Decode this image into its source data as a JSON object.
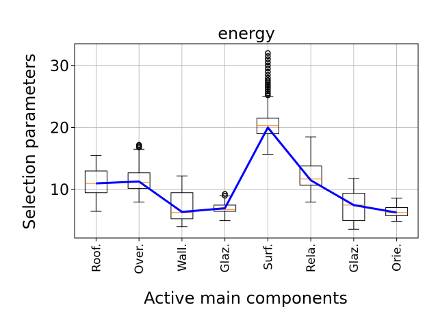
{
  "chart_data": {
    "type": "box",
    "title": "energy",
    "xlabel": "Active main components",
    "ylabel": "Selection parameters",
    "ylim": [
      2.2,
      33.5
    ],
    "yticks": [
      10,
      20,
      30
    ],
    "grid": true,
    "categories": [
      "Roof.",
      "Over.",
      "Wall.",
      "Glaz.",
      "Surf.",
      "Rela.",
      "Glaz.",
      "Orie."
    ],
    "boxes": [
      {
        "whislo": 6.5,
        "q1": 9.5,
        "med": 11.0,
        "q3": 13.0,
        "whishi": 15.5,
        "fliers": []
      },
      {
        "whislo": 8.0,
        "q1": 10.2,
        "med": 11.2,
        "q3": 12.7,
        "whishi": 16.5,
        "fliers": [
          16.8,
          17.0,
          17.2
        ]
      },
      {
        "whislo": 4.0,
        "q1": 5.3,
        "med": 6.3,
        "q3": 9.5,
        "whishi": 12.2,
        "fliers": []
      },
      {
        "whislo": 5.0,
        "q1": 6.5,
        "med": 6.8,
        "q3": 7.5,
        "whishi": 9.0,
        "fliers": [
          9.0,
          9.3
        ]
      },
      {
        "whislo": 15.7,
        "q1": 19.0,
        "med": 20.3,
        "q3": 21.5,
        "whishi": 25.0,
        "fliers": [
          25.2,
          25.5,
          25.8,
          26.1,
          26.4,
          26.7,
          27.0,
          27.3,
          27.6,
          28.0,
          28.5,
          29.0,
          29.5,
          30.0,
          30.5,
          31.0,
          31.5,
          32.0
        ]
      },
      {
        "whislo": 8.0,
        "q1": 10.7,
        "med": 11.7,
        "q3": 13.8,
        "whishi": 18.5,
        "fliers": []
      },
      {
        "whislo": 3.6,
        "q1": 5.0,
        "med": 7.5,
        "q3": 9.4,
        "whishi": 11.8,
        "fliers": []
      },
      {
        "whislo": 4.9,
        "q1": 5.8,
        "med": 6.3,
        "q3": 7.1,
        "whishi": 8.6,
        "fliers": []
      }
    ],
    "line": {
      "values": [
        11.0,
        11.3,
        6.4,
        7.0,
        20.0,
        11.5,
        7.5,
        6.3
      ],
      "color": "#0000ff"
    },
    "colors": {
      "box": "#000000",
      "median": "#ff7f0e",
      "grid": "#b0b0b0",
      "line": "#0000ff"
    }
  }
}
